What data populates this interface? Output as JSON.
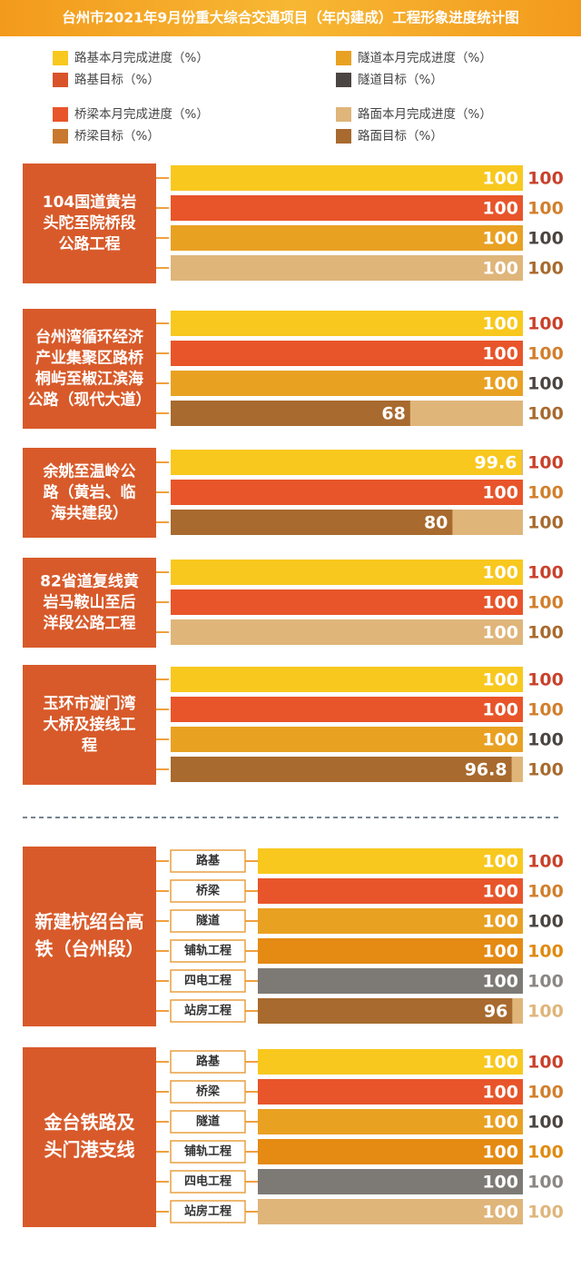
{
  "chart_data": {
    "type": "progress",
    "title": "台州市2021年9月份重大综合交通项目（年内建成）工程形象进度统计图",
    "xlim": [
      0,
      100
    ],
    "track_color": "#dfb57a",
    "legend": [
      {
        "label": "路基本月完成进度（%）",
        "color": "#f8c81e"
      },
      {
        "label": "隧道本月完成进度（%）",
        "color": "#e9a122"
      },
      {
        "label": "路基目标（%）",
        "color": "#d9532a"
      },
      {
        "label": "隧道目标（%）",
        "color": "#4b4541"
      },
      {
        "label": "桥梁本月完成进度（%）",
        "color": "#e8552a"
      },
      {
        "label": "路面本月完成进度（%）",
        "color": "#dfb57a"
      },
      {
        "label": "桥梁目标（%）",
        "color": "#c8792f"
      },
      {
        "label": "路面目标（%）",
        "color": "#a86a2e"
      }
    ],
    "projects": [
      {
        "name": [
          "104国道黄岩",
          "头陀至院桥段",
          "公路工程"
        ],
        "rows": [
          {
            "value": 100,
            "color": "#f8c81e",
            "target": 100,
            "target_color": "#c9412b"
          },
          {
            "value": 100,
            "color": "#e8552a",
            "target": 100,
            "target_color": "#d27f2c"
          },
          {
            "value": 100,
            "color": "#e9a122",
            "target": 100,
            "target_color": "#4b4541"
          },
          {
            "value": 100,
            "color": "#dfb57a",
            "target": 100,
            "target_color": "#a86a2e"
          }
        ]
      },
      {
        "name": [
          "台州湾循环经济",
          "产业集聚区路桥",
          "桐屿至椒江滨海",
          "公路（现代大道）"
        ],
        "rows": [
          {
            "value": 100,
            "color": "#f8c81e",
            "target": 100,
            "target_color": "#c9412b"
          },
          {
            "value": 100,
            "color": "#e8552a",
            "target": 100,
            "target_color": "#d27f2c"
          },
          {
            "value": 100,
            "color": "#e9a122",
            "target": 100,
            "target_color": "#4b4541"
          },
          {
            "value": 68,
            "color": "#a86a2e",
            "target": 100,
            "target_color": "#a86a2e"
          }
        ]
      },
      {
        "name": [
          "余姚至温岭公",
          "路（黄岩、临",
          "海共建段）"
        ],
        "rows": [
          {
            "value": 99.6,
            "color": "#f8c81e",
            "target": 100,
            "target_color": "#c9412b"
          },
          {
            "value": 100,
            "color": "#e8552a",
            "target": 100,
            "target_color": "#d27f2c"
          },
          {
            "value": 80,
            "color": "#a86a2e",
            "target": 100,
            "target_color": "#a86a2e"
          }
        ]
      },
      {
        "name": [
          "82省道复线黄",
          "岩马鞍山至后",
          "洋段公路工程"
        ],
        "rows": [
          {
            "value": 100,
            "color": "#f8c81e",
            "target": 100,
            "target_color": "#c9412b"
          },
          {
            "value": 100,
            "color": "#e8552a",
            "target": 100,
            "target_color": "#d27f2c"
          },
          {
            "value": 100,
            "color": "#dfb57a",
            "target": 100,
            "target_color": "#a86a2e"
          }
        ]
      },
      {
        "name": [
          "玉环市漩门湾",
          "大桥及接线工",
          "程"
        ],
        "rows": [
          {
            "value": 100,
            "color": "#f8c81e",
            "target": 100,
            "target_color": "#c9412b"
          },
          {
            "value": 100,
            "color": "#e8552a",
            "target": 100,
            "target_color": "#d27f2c"
          },
          {
            "value": 100,
            "color": "#e9a122",
            "target": 100,
            "target_color": "#4b4541"
          },
          {
            "value": 96.8,
            "color": "#a86a2e",
            "target": 100,
            "target_color": "#a86a2e"
          }
        ]
      },
      {
        "name": [
          "新建杭绍台高",
          "铁（台州段）"
        ],
        "rows": [
          {
            "label": "路基",
            "value": 100,
            "color": "#f8c81e",
            "target": 100,
            "target_color": "#c9412b"
          },
          {
            "label": "桥梁",
            "value": 100,
            "color": "#e8552a",
            "target": 100,
            "target_color": "#d27f2c"
          },
          {
            "label": "隧道",
            "value": 100,
            "color": "#e9a122",
            "target": 100,
            "target_color": "#4b4541"
          },
          {
            "label": "铺轨工程",
            "value": 100,
            "color": "#e58a12",
            "target": 100,
            "target_color": "#e08a10"
          },
          {
            "label": "四电工程",
            "value": 100,
            "color": "#7d7a76",
            "target": 100,
            "target_color": "#8a8784"
          },
          {
            "label": "站房工程",
            "value": 96,
            "color": "#a86a2e",
            "target": 100,
            "target_color": "#dfb57a"
          }
        ]
      },
      {
        "name": [
          "金台铁路及",
          "头门港支线"
        ],
        "rows": [
          {
            "label": "路基",
            "value": 100,
            "color": "#f8c81e",
            "target": 100,
            "target_color": "#c9412b"
          },
          {
            "label": "桥梁",
            "value": 100,
            "color": "#e8552a",
            "target": 100,
            "target_color": "#d27f2c"
          },
          {
            "label": "隧道",
            "value": 100,
            "color": "#e9a122",
            "target": 100,
            "target_color": "#4b4541"
          },
          {
            "label": "铺轨工程",
            "value": 100,
            "color": "#e58a12",
            "target": 100,
            "target_color": "#e08a10"
          },
          {
            "label": "四电工程",
            "value": 100,
            "color": "#7d7a76",
            "target": 100,
            "target_color": "#8a8784"
          },
          {
            "label": "站房工程",
            "value": 100,
            "color": "#dfb57a",
            "target": 100,
            "target_color": "#dfb57a"
          }
        ]
      }
    ]
  }
}
